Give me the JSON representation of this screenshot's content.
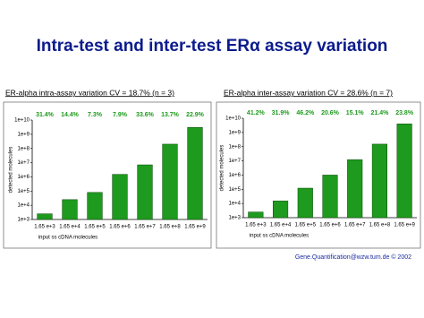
{
  "title": "Intra-test  and  inter-test ERα assay variation",
  "footer": "Gene.Quantification@wzw.tum.de © 2002",
  "chart_data": [
    {
      "type": "bar",
      "title": "ER-alpha intra-assay variation CV = 18.7% (n = 3)",
      "x_label": "input ss cDNA molecules",
      "y_label": "detected molecules",
      "categories": [
        "1.65 e+3",
        "1.65 e+4",
        "1.65 e+5",
        "1.65 e+6",
        "1.65 e+7",
        "1.65 e+8",
        "1.65 e+9"
      ],
      "values": [
        2500,
        25000,
        80000,
        1500000,
        7000000,
        200000000,
        3000000000
      ],
      "annotations": [
        "31.4%",
        "14.4%",
        "7.3%",
        "7.9%",
        "33.6%",
        "13.7%",
        "22.9%"
      ],
      "color": "#1e9a1e",
      "log_scale": true,
      "ylim": [
        1000,
        10000000000
      ],
      "yticks": [
        {
          "value": 1000,
          "label": "1e+3"
        },
        {
          "value": 10000,
          "label": "1e+4"
        },
        {
          "value": 100000,
          "label": "1e+5"
        },
        {
          "value": 1000000,
          "label": "1e+6"
        },
        {
          "value": 10000000,
          "label": "1e+7"
        },
        {
          "value": 100000000,
          "label": "1e+8"
        },
        {
          "value": 1000000000,
          "label": "1e+9"
        },
        {
          "value": 10000000000,
          "label": "1e+10"
        }
      ]
    },
    {
      "type": "bar",
      "title": "ER-alpha inter-assay variation CV = 28.6% (n = 7)",
      "x_label": "input ss cDNA molecules",
      "y_label": "detected molecules",
      "categories": [
        "1.65 e+3",
        "1.65 e+4",
        "1.65 e+5",
        "1.65 e+6",
        "1.65 e+7",
        "1.65 e+8",
        "1.65 e+9"
      ],
      "values": [
        2500,
        15000,
        120000,
        1000000,
        12000000,
        150000000,
        4000000000
      ],
      "annotations": [
        "41.2%",
        "31.9%",
        "46.2%",
        "20.6%",
        "15.1%",
        "21.4%",
        "23.8%"
      ],
      "color": "#1e9a1e",
      "log_scale": true,
      "ylim": [
        1000,
        10000000000
      ],
      "yticks": [
        {
          "value": 1000,
          "label": "1e+3"
        },
        {
          "value": 10000,
          "label": "1e+4"
        },
        {
          "value": 100000,
          "label": "1e+5"
        },
        {
          "value": 1000000,
          "label": "1e+6"
        },
        {
          "value": 10000000,
          "label": "1e+7"
        },
        {
          "value": 100000000,
          "label": "1e+8"
        },
        {
          "value": 1000000000,
          "label": "1e+9"
        },
        {
          "value": 10000000000,
          "label": "1e+10"
        }
      ]
    }
  ]
}
